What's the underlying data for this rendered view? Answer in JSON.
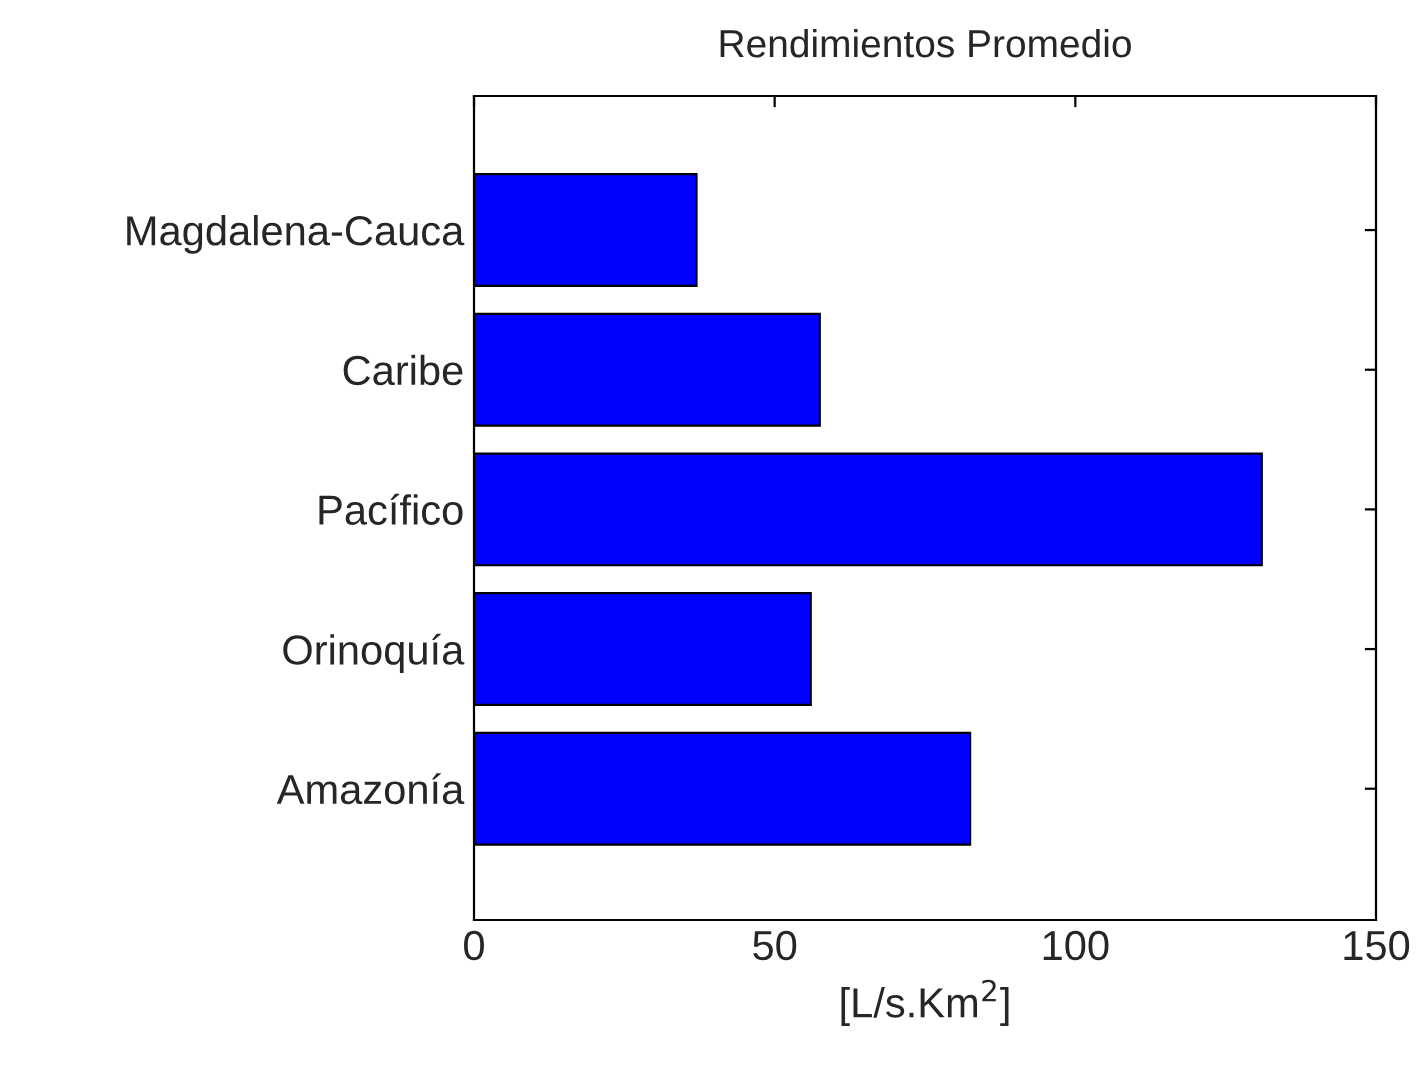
{
  "chart_data": {
    "type": "bar",
    "orientation": "horizontal",
    "title": "Rendimientos Promedio",
    "xlabel": "[L/s.Km$^{2}$]",
    "categories": [
      "Magdalena-Cauca",
      "Caribe",
      "Pacífico",
      "Orinoquía",
      "Amazonía"
    ],
    "values": [
      37,
      57.5,
      131,
      56,
      82.5
    ],
    "color": "#0000ff",
    "xlim": [
      0,
      150
    ],
    "xticks": [
      0,
      50,
      100,
      150
    ],
    "grid": false,
    "legend": false
  }
}
